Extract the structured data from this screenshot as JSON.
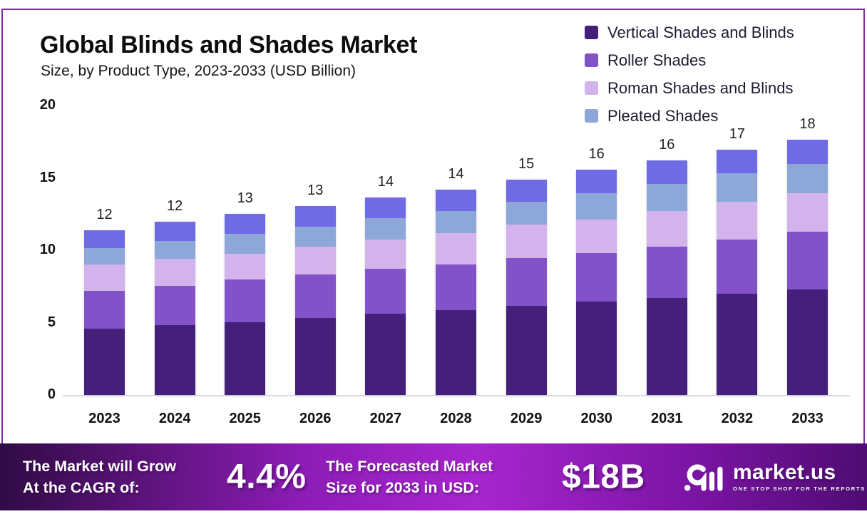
{
  "header": {
    "title": "Global Blinds and Shades Market",
    "subtitle": "Size, by Product Type, 2023-2033 (USD Billion)"
  },
  "chart_data": {
    "type": "bar",
    "stacked": true,
    "title": "Global Blinds and Shades Market Size, by Product Type, 2023-2033 (USD Billion)",
    "xlabel": "",
    "ylabel": "",
    "ylim": [
      0,
      20
    ],
    "yticks": [
      20,
      15,
      10,
      5,
      0
    ],
    "grid": false,
    "legend_position": "top-right",
    "categories": [
      "2023",
      "2024",
      "2025",
      "2026",
      "2027",
      "2028",
      "2029",
      "2030",
      "2031",
      "2032",
      "2033"
    ],
    "series": [
      {
        "name": "Vertical Shades and Blinds",
        "color": "#45207b",
        "values": [
          4.6,
          4.85,
          5.05,
          5.3,
          5.6,
          5.85,
          6.15,
          6.45,
          6.7,
          7.0,
          7.3
        ]
      },
      {
        "name": "Roller Shades",
        "color": "#8152c8",
        "values": [
          2.6,
          2.7,
          2.95,
          3.05,
          3.1,
          3.15,
          3.3,
          3.35,
          3.55,
          3.75,
          4.0
        ]
      },
      {
        "name": "Roman Shades and Blinds",
        "color": "#d3b3ec",
        "values": [
          1.8,
          1.85,
          1.75,
          1.9,
          2.05,
          2.2,
          2.3,
          2.3,
          2.45,
          2.6,
          2.65
        ]
      },
      {
        "name": "Pleated Shades",
        "color": "#8ea7d9",
        "values": [
          1.15,
          1.25,
          1.4,
          1.4,
          1.45,
          1.5,
          1.6,
          1.85,
          1.9,
          1.95,
          2.0
        ]
      },
      {
        "name": "",
        "color": "#6f6be5",
        "values": [
          1.25,
          1.3,
          1.35,
          1.4,
          1.45,
          1.5,
          1.55,
          1.6,
          1.6,
          1.65,
          1.7
        ]
      }
    ],
    "bar_total_labels": [
      "12",
      "12",
      "13",
      "13",
      "14",
      "14",
      "15",
      "16",
      "16",
      "17",
      "18"
    ]
  },
  "footer": {
    "cagr_label_line1": "The Market will Grow",
    "cagr_label_line2": "At the CAGR of:",
    "cagr_value": "4.4%",
    "forecast_label_line1": "The Forecasted Market",
    "forecast_label_line2": "Size for 2033 in USD:",
    "forecast_value": "$18B",
    "brand_name": "market.us",
    "brand_tagline": "ONE STOP SHOP FOR THE REPORTS"
  },
  "colors": {
    "chart_border": "#7f2fa3",
    "axis_line": "#dcdcdc",
    "footer_gradient": [
      "#300b45",
      "#8d1cb6",
      "#a726ce",
      "#7b14a4",
      "#4e0c72"
    ]
  }
}
